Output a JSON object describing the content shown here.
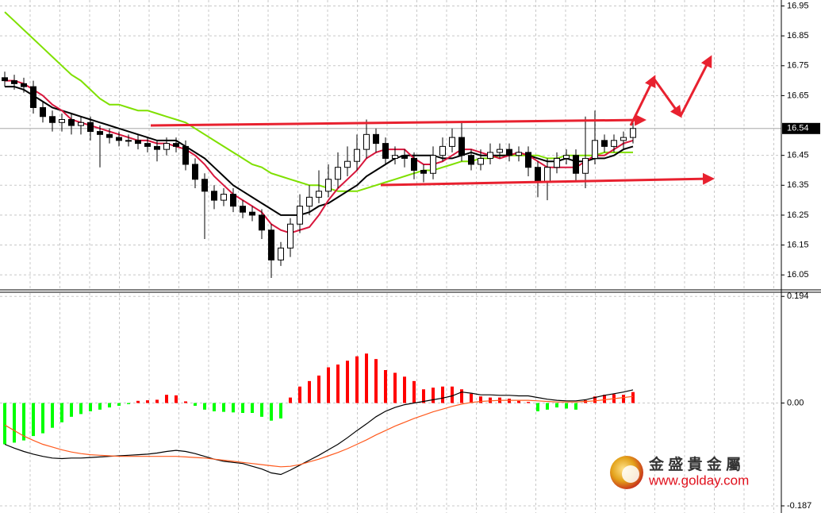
{
  "chart_data": [
    {
      "type": "candlestick",
      "ylim": [
        16.0,
        16.97
      ],
      "yticks": [
        16.95,
        16.85,
        16.75,
        16.65,
        16.45,
        16.35,
        16.25,
        16.15,
        16.05
      ],
      "grid": true,
      "last_price": 16.54,
      "up_color": "#ffffff",
      "down_color": "#000000",
      "open": [
        16.71,
        16.7,
        16.69,
        16.68,
        16.61,
        16.58,
        16.56,
        16.57,
        16.55,
        16.56,
        16.53,
        16.52,
        16.51,
        16.5,
        16.5,
        16.49,
        16.48,
        16.47,
        16.49,
        16.48,
        16.42,
        16.37,
        16.33,
        16.3,
        16.32,
        16.28,
        16.26,
        16.25,
        16.2,
        16.1,
        16.14,
        16.22,
        16.28,
        16.31,
        16.33,
        16.37,
        16.41,
        16.43,
        16.47,
        16.52,
        16.49,
        16.44,
        16.45,
        16.44,
        16.4,
        16.39,
        16.45,
        16.48,
        16.51,
        16.45,
        16.42,
        16.44,
        16.46,
        16.47,
        16.45,
        16.46,
        16.41,
        16.36,
        16.41,
        16.44,
        16.45,
        16.39,
        16.44,
        16.5,
        16.48,
        16.5,
        16.51
      ],
      "high": [
        16.73,
        16.72,
        16.71,
        16.7,
        16.63,
        16.6,
        16.59,
        16.59,
        16.58,
        16.58,
        16.55,
        16.54,
        16.53,
        16.52,
        16.52,
        16.51,
        16.5,
        16.51,
        16.51,
        16.5,
        16.44,
        16.39,
        16.35,
        16.34,
        16.34,
        16.3,
        16.28,
        16.27,
        16.22,
        16.16,
        16.24,
        16.32,
        16.35,
        16.4,
        16.42,
        16.46,
        16.48,
        16.52,
        16.57,
        16.54,
        16.51,
        16.48,
        16.47,
        16.46,
        16.42,
        16.48,
        16.51,
        16.54,
        16.56,
        16.47,
        16.47,
        16.49,
        16.49,
        16.49,
        16.48,
        16.48,
        16.43,
        16.44,
        16.46,
        16.47,
        16.47,
        16.58,
        16.6,
        16.52,
        16.52,
        16.53,
        16.56
      ],
      "low": [
        16.68,
        16.67,
        16.66,
        16.59,
        16.56,
        16.53,
        16.53,
        16.52,
        16.52,
        16.5,
        16.41,
        16.49,
        16.48,
        16.48,
        16.47,
        16.46,
        16.43,
        16.45,
        16.46,
        16.4,
        16.34,
        16.17,
        16.27,
        16.28,
        16.26,
        16.24,
        16.23,
        16.17,
        16.04,
        16.08,
        16.11,
        16.19,
        16.25,
        16.29,
        16.31,
        16.34,
        16.38,
        16.4,
        16.44,
        16.46,
        16.42,
        16.42,
        16.41,
        16.37,
        16.36,
        16.37,
        16.43,
        16.46,
        16.43,
        16.4,
        16.4,
        16.42,
        16.44,
        16.43,
        16.43,
        16.38,
        16.31,
        16.3,
        16.39,
        16.42,
        16.36,
        16.34,
        16.42,
        16.46,
        16.46,
        16.47,
        16.49
      ],
      "close": [
        16.7,
        16.69,
        16.68,
        16.61,
        16.58,
        16.56,
        16.57,
        16.55,
        16.56,
        16.53,
        16.52,
        16.51,
        16.5,
        16.5,
        16.49,
        16.48,
        16.47,
        16.49,
        16.48,
        16.42,
        16.37,
        16.33,
        16.3,
        16.32,
        16.28,
        16.26,
        16.25,
        16.2,
        16.1,
        16.14,
        16.22,
        16.28,
        16.31,
        16.33,
        16.37,
        16.41,
        16.43,
        16.47,
        16.52,
        16.49,
        16.44,
        16.45,
        16.44,
        16.4,
        16.39,
        16.45,
        16.48,
        16.51,
        16.45,
        16.42,
        16.44,
        16.46,
        16.47,
        16.45,
        16.46,
        16.41,
        16.36,
        16.41,
        16.44,
        16.45,
        16.39,
        16.44,
        16.5,
        16.48,
        16.5,
        16.51,
        16.54
      ],
      "lines": [
        {
          "color": "#7fe000",
          "values": [
            16.93,
            16.9,
            16.87,
            16.84,
            16.81,
            16.78,
            16.75,
            16.72,
            16.7,
            16.67,
            16.64,
            16.62,
            16.62,
            16.61,
            16.6,
            16.6,
            16.59,
            16.58,
            16.57,
            16.56,
            16.54,
            16.52,
            16.5,
            16.48,
            16.46,
            16.44,
            16.42,
            16.41,
            16.39,
            16.38,
            16.37,
            16.36,
            16.35,
            16.35,
            16.34,
            16.33,
            16.33,
            16.33,
            16.34,
            16.35,
            16.36,
            16.37,
            16.38,
            16.39,
            16.4,
            16.4,
            16.41,
            16.42,
            16.43,
            16.43,
            16.44,
            16.44,
            16.45,
            16.45,
            16.45,
            16.45,
            16.45,
            16.44,
            16.44,
            16.45,
            16.45,
            16.45,
            16.45,
            16.46,
            16.46,
            16.46,
            16.46
          ]
        },
        {
          "color": "#000000",
          "values": [
            16.68,
            16.68,
            16.67,
            16.65,
            16.63,
            16.61,
            16.6,
            16.59,
            16.58,
            16.57,
            16.56,
            16.55,
            16.54,
            16.53,
            16.52,
            16.51,
            16.5,
            16.5,
            16.5,
            16.48,
            16.46,
            16.44,
            16.41,
            16.38,
            16.35,
            16.33,
            16.31,
            16.29,
            16.27,
            16.25,
            16.25,
            16.25,
            16.26,
            16.28,
            16.29,
            16.31,
            16.33,
            16.35,
            16.38,
            16.4,
            16.42,
            16.44,
            16.45,
            16.45,
            16.45,
            16.45,
            16.44,
            16.44,
            16.45,
            16.46,
            16.45,
            16.45,
            16.45,
            16.45,
            16.46,
            16.45,
            16.44,
            16.43,
            16.43,
            16.44,
            16.43,
            16.43,
            16.44,
            16.44,
            16.45,
            16.47,
            16.48
          ]
        },
        {
          "color": "#d8163c",
          "values": [
            16.7,
            16.7,
            16.69,
            16.67,
            16.65,
            16.62,
            16.6,
            16.57,
            16.56,
            16.55,
            16.54,
            16.53,
            16.52,
            16.51,
            16.5,
            16.5,
            16.49,
            16.49,
            16.48,
            16.47,
            16.45,
            16.42,
            16.38,
            16.35,
            16.32,
            16.3,
            16.28,
            16.26,
            16.22,
            16.2,
            16.19,
            16.2,
            16.21,
            16.25,
            16.3,
            16.34,
            16.37,
            16.4,
            16.44,
            16.46,
            16.47,
            16.47,
            16.47,
            16.44,
            16.42,
            16.42,
            16.43,
            16.45,
            16.47,
            16.47,
            16.46,
            16.45,
            16.44,
            16.45,
            16.46,
            16.45,
            16.43,
            16.41,
            16.41,
            16.41,
            16.41,
            16.43,
            16.45,
            16.45,
            16.47,
            16.49,
            16.5
          ]
        }
      ]
    },
    {
      "type": "macd",
      "ylim": [
        -0.2,
        0.203
      ],
      "yticks": [
        0.194,
        {
          "value": 0,
          "label": "0.00"
        },
        -0.187
      ],
      "positive_color": "#ff0000",
      "negative_color": "#00ff00",
      "values": [
        -0.075,
        -0.072,
        -0.068,
        -0.06,
        -0.055,
        -0.045,
        -0.035,
        -0.025,
        -0.02,
        -0.015,
        -0.012,
        -0.008,
        -0.005,
        -0.002,
        0.004,
        0.005,
        0.006,
        0.015,
        0.014,
        0.003,
        -0.005,
        -0.012,
        -0.015,
        -0.016,
        -0.017,
        -0.018,
        -0.018,
        -0.025,
        -0.032,
        -0.028,
        0.01,
        0.03,
        0.04,
        0.05,
        0.065,
        0.07,
        0.077,
        0.085,
        0.09,
        0.08,
        0.06,
        0.055,
        0.048,
        0.04,
        0.025,
        0.028,
        0.03,
        0.03,
        0.025,
        0.017,
        0.012,
        0.01,
        0.01,
        0.008,
        0.004,
        0.002,
        -0.015,
        -0.012,
        -0.008,
        -0.01,
        -0.012,
        0.005,
        0.012,
        0.015,
        0.016,
        0.015,
        0.02
      ],
      "lines": [
        {
          "color": "#000000",
          "values": [
            -0.075,
            -0.082,
            -0.088,
            -0.093,
            -0.097,
            -0.1,
            -0.101,
            -0.1,
            -0.1,
            -0.099,
            -0.098,
            -0.097,
            -0.096,
            -0.095,
            -0.094,
            -0.093,
            -0.091,
            -0.088,
            -0.086,
            -0.088,
            -0.092,
            -0.097,
            -0.102,
            -0.106,
            -0.108,
            -0.11,
            -0.115,
            -0.12,
            -0.127,
            -0.13,
            -0.122,
            -0.113,
            -0.104,
            -0.095,
            -0.085,
            -0.075,
            -0.063,
            -0.05,
            -0.038,
            -0.025,
            -0.015,
            -0.008,
            -0.003,
            0.0,
            0.003,
            0.006,
            0.009,
            0.013,
            0.02,
            0.018,
            0.015,
            0.015,
            0.014,
            0.014,
            0.013,
            0.013,
            0.01,
            0.007,
            0.005,
            0.004,
            0.004,
            0.006,
            0.01,
            0.014,
            0.017,
            0.02,
            0.024
          ]
        },
        {
          "color": "#ff5a1e",
          "values": [
            -0.04,
            -0.05,
            -0.06,
            -0.068,
            -0.075,
            -0.08,
            -0.085,
            -0.089,
            -0.092,
            -0.094,
            -0.095,
            -0.096,
            -0.097,
            -0.097,
            -0.097,
            -0.097,
            -0.097,
            -0.097,
            -0.097,
            -0.098,
            -0.099,
            -0.1,
            -0.102,
            -0.104,
            -0.106,
            -0.108,
            -0.11,
            -0.112,
            -0.114,
            -0.116,
            -0.115,
            -0.112,
            -0.107,
            -0.102,
            -0.096,
            -0.09,
            -0.083,
            -0.075,
            -0.067,
            -0.058,
            -0.05,
            -0.042,
            -0.035,
            -0.028,
            -0.022,
            -0.016,
            -0.011,
            -0.006,
            -0.002,
            0.001,
            0.003,
            0.004,
            0.005,
            0.005,
            0.005,
            0.005,
            0.004,
            0.003,
            0.002,
            0.002,
            0.002,
            0.003,
            0.004,
            0.006,
            0.008,
            0.01,
            0.012
          ]
        }
      ]
    }
  ],
  "watermark": {
    "name": "金 盛 貴 金 屬",
    "url": "www.golday.com"
  }
}
